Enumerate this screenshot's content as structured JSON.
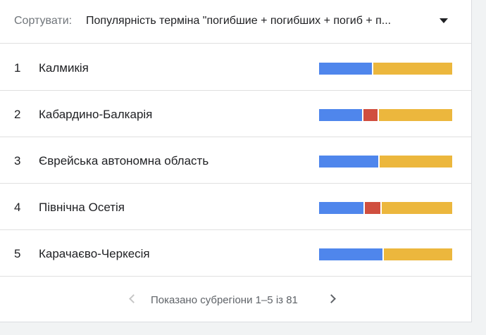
{
  "sort": {
    "label": "Сортувати:",
    "value": "Популярність терміна \"погибшие + погибших + погиб + п..."
  },
  "colors": {
    "blue": "#4f86ec",
    "red": "#d04f3f",
    "yellow": "#ecb73d"
  },
  "rows": [
    {
      "rank": "1",
      "name": "Калмикія",
      "shares": [
        {
          "color": "blue",
          "value": 40
        },
        {
          "color": "yellow",
          "value": 60
        }
      ]
    },
    {
      "rank": "2",
      "name": "Кабардино-Балкарія",
      "shares": [
        {
          "color": "blue",
          "value": 33
        },
        {
          "color": "red",
          "value": 11
        },
        {
          "color": "yellow",
          "value": 56
        }
      ]
    },
    {
      "rank": "3",
      "name": "Єврейська автономна область",
      "shares": [
        {
          "color": "blue",
          "value": 45
        },
        {
          "color": "yellow",
          "value": 55
        }
      ]
    },
    {
      "rank": "4",
      "name": "Північна Осетія",
      "shares": [
        {
          "color": "blue",
          "value": 34
        },
        {
          "color": "red",
          "value": 12
        },
        {
          "color": "yellow",
          "value": 54
        }
      ]
    },
    {
      "rank": "5",
      "name": "Карачаєво-Черкесія",
      "shares": [
        {
          "color": "blue",
          "value": 48
        },
        {
          "color": "yellow",
          "value": 52
        }
      ]
    }
  ],
  "pagination": {
    "text": "Показано субрегіони 1–5 із 81"
  }
}
